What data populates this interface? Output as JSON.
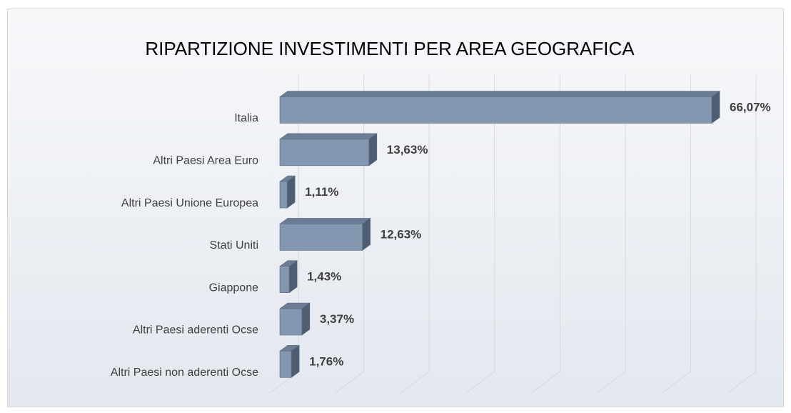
{
  "chart_data": {
    "type": "bar3d_horizontal",
    "title": "RIPARTIZIONE INVESTIMENTI PER AREA GEOGRAFICA",
    "categories": [
      "Italia",
      "Altri Paesi Area Euro",
      "Altri Paesi Unione Europea",
      "Stati Uniti",
      "Giappone",
      "Altri Paesi aderenti Ocse",
      "Altri Paesi non aderenti Ocse"
    ],
    "values": [
      66.07,
      13.63,
      1.11,
      12.63,
      1.43,
      3.37,
      1.76
    ],
    "value_labels": [
      "66,07%",
      "13,63%",
      "1,11%",
      "12,63%",
      "1,43%",
      "3,37%",
      "1,76%"
    ],
    "color": "#8497b0",
    "xlim": [
      0,
      70
    ],
    "xticks": [
      0,
      10,
      20,
      30,
      40,
      50,
      60,
      70
    ],
    "grid": true
  }
}
